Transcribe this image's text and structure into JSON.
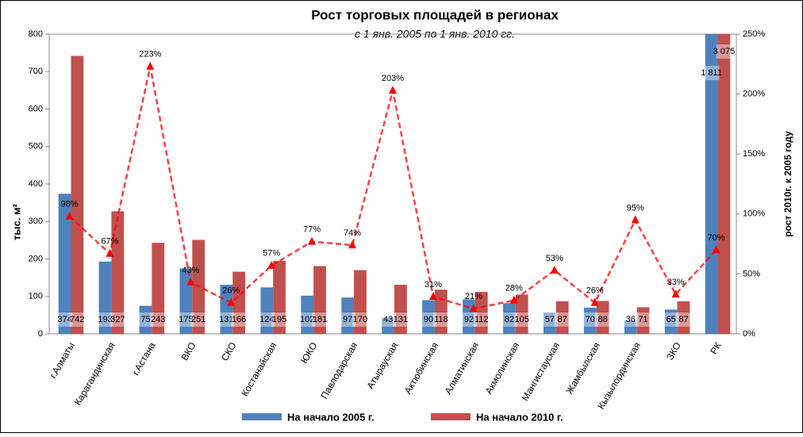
{
  "chart_data": {
    "type": "bar",
    "title": "Рост торговых площадей в регионах",
    "subtitle": "с 1 янв. 2005 по 1 янв. 2010 гг.",
    "y_label": "тыс. м²",
    "y2_label": "рост 2010г. к 2005 году",
    "categories": [
      "г.Алматы",
      "Карагандинская",
      "г.Астана",
      "ВКО",
      "СКО",
      "Костанайская",
      "ЮКО",
      "Павлодарская",
      "Атырауская",
      "Актюбинская",
      "Алматинская",
      "Акмолинская",
      "Мангистауская",
      "Жамбылская",
      "Кызылординская",
      "ЗКО",
      "РК"
    ],
    "series": [
      {
        "name": "На начало 2005 г.",
        "color": "#4f81bd",
        "values": [
          374,
          193,
          75,
          175,
          131,
          124,
          102,
          97,
          43,
          90,
          92,
          82,
          57,
          70,
          36,
          65,
          1811
        ],
        "value_labels": [
          "374",
          "193",
          "75",
          "175",
          "131",
          "124",
          "102",
          "97",
          "43",
          "90",
          "92",
          "82",
          "57",
          "70",
          "36",
          "65",
          "1 811"
        ]
      },
      {
        "name": "На начало 2010 г.",
        "color": "#c0504d",
        "values": [
          742,
          327,
          243,
          251,
          166,
          195,
          181,
          170,
          131,
          118,
          112,
          105,
          87,
          88,
          71,
          87,
          3075
        ],
        "value_labels": [
          "742",
          "327",
          "243",
          "251",
          "166",
          "195",
          "181",
          "170",
          "131",
          "118",
          "112",
          "105",
          "87",
          "88",
          "71",
          "87",
          "3 075"
        ]
      },
      {
        "type": "line",
        "axis": "y2",
        "color": "#ff0000",
        "values": [
          98,
          67,
          223,
          43,
          26,
          57,
          77,
          74,
          203,
          31,
          21,
          28,
          53,
          26,
          95,
          33,
          70
        ],
        "value_labels": [
          "98%",
          "67%",
          "223%",
          "43%",
          "26%",
          "57%",
          "77%",
          "74%",
          "203%",
          "31%",
          "21%",
          "28%",
          "53%",
          "26%",
          "95%",
          "33%",
          "70%"
        ]
      }
    ],
    "ylim": [
      0,
      800
    ],
    "yticks": [
      0,
      100,
      200,
      300,
      400,
      500,
      600,
      700,
      800
    ],
    "y2lim": [
      0,
      250
    ],
    "y2ticks": [
      {
        "value": 0,
        "label": "0%"
      },
      {
        "value": 50,
        "label": "50%"
      },
      {
        "value": 100,
        "label": "100%"
      },
      {
        "value": 150,
        "label": "150%"
      },
      {
        "value": 200,
        "label": "200%"
      },
      {
        "value": 250,
        "label": "250%"
      }
    ],
    "legend": "bottom"
  }
}
